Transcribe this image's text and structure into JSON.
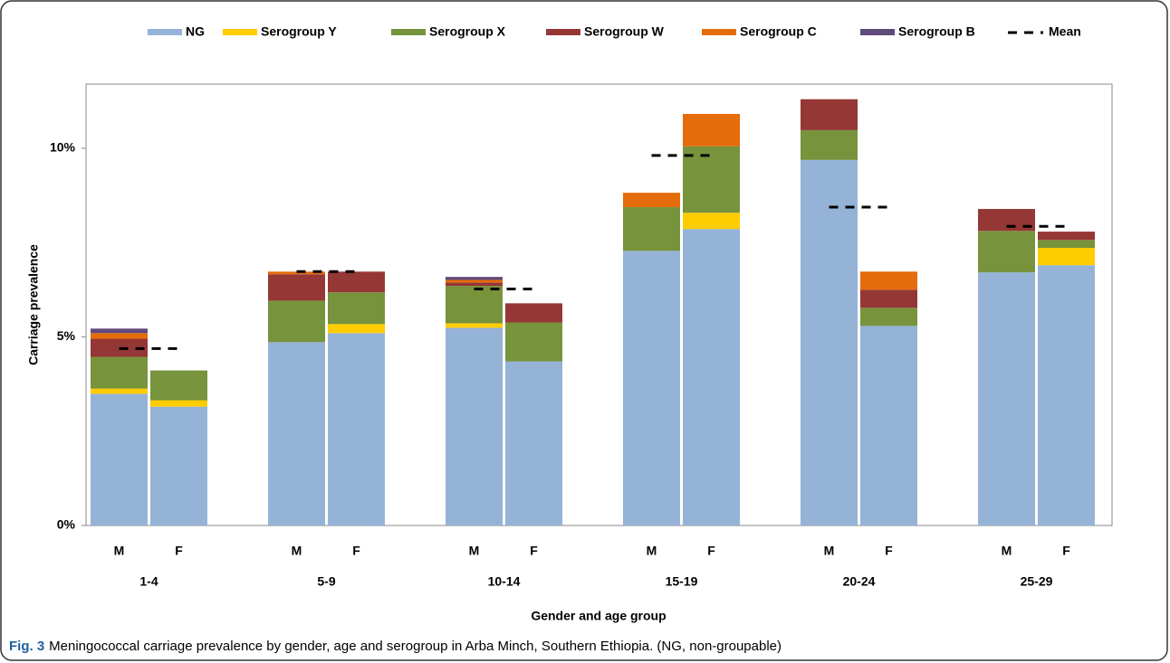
{
  "chart_data": {
    "type": "stacked-bar",
    "ylabel": "Carriage prevalence",
    "xlabel": "Gender and age group",
    "caption": {
      "label": "Fig. 3",
      "text": "Meningococcal carriage prevalence by gender, age and serogroup in Arba Minch, Southern Ethiopia. (NG, non-groupable)"
    },
    "groups": [
      "1-4",
      "5-9",
      "10-14",
      "15-19",
      "20-24",
      "25-29"
    ],
    "categories": [
      "M",
      "F",
      "M",
      "F",
      "M",
      "F",
      "M",
      "F",
      "M",
      "F",
      "M",
      "F"
    ],
    "ylim": [
      0,
      11.7
    ],
    "yticks": [
      {
        "value": 0,
        "label": "0%"
      },
      {
        "value": 5,
        "label": "5%"
      },
      {
        "value": 10,
        "label": "10%"
      }
    ],
    "series": [
      {
        "name": "NG",
        "color": "#95b3d7",
        "values": [
          3.49,
          3.15,
          4.86,
          5.1,
          5.24,
          4.35,
          7.28,
          7.86,
          9.69,
          5.29,
          6.71,
          6.9
        ]
      },
      {
        "name": "Serogroup Y",
        "color": "#ffcc00",
        "values": [
          0.14,
          0.17,
          0,
          0.24,
          0.12,
          0,
          0,
          0.43,
          0,
          0,
          0,
          0.46
        ]
      },
      {
        "name": "Serogroup X",
        "color": "#77933c",
        "values": [
          0.84,
          0.79,
          1.1,
          0.84,
          0.99,
          1.03,
          1.16,
          1.76,
          0.79,
          0.48,
          1.1,
          0.21
        ]
      },
      {
        "name": "Serogroup W",
        "color": "#953735",
        "values": [
          0.48,
          0,
          0.7,
          0.55,
          0.09,
          0.51,
          0,
          0,
          0.82,
          0.48,
          0.58,
          0.22
        ]
      },
      {
        "name": "Serogroup C",
        "color": "#e46c0a",
        "values": [
          0.15,
          0,
          0.07,
          0,
          0.07,
          0,
          0.38,
          0.86,
          0,
          0.48,
          0,
          0
        ]
      },
      {
        "name": "Serogroup B",
        "color": "#604a7b",
        "values": [
          0.12,
          0,
          0,
          0,
          0.08,
          0,
          0,
          0,
          0,
          0,
          0,
          0
        ]
      }
    ],
    "mean": {
      "name": "Mean",
      "color": "#000000",
      "values": [
        4.69,
        6.73,
        6.27,
        9.81,
        8.44,
        7.93
      ]
    }
  }
}
